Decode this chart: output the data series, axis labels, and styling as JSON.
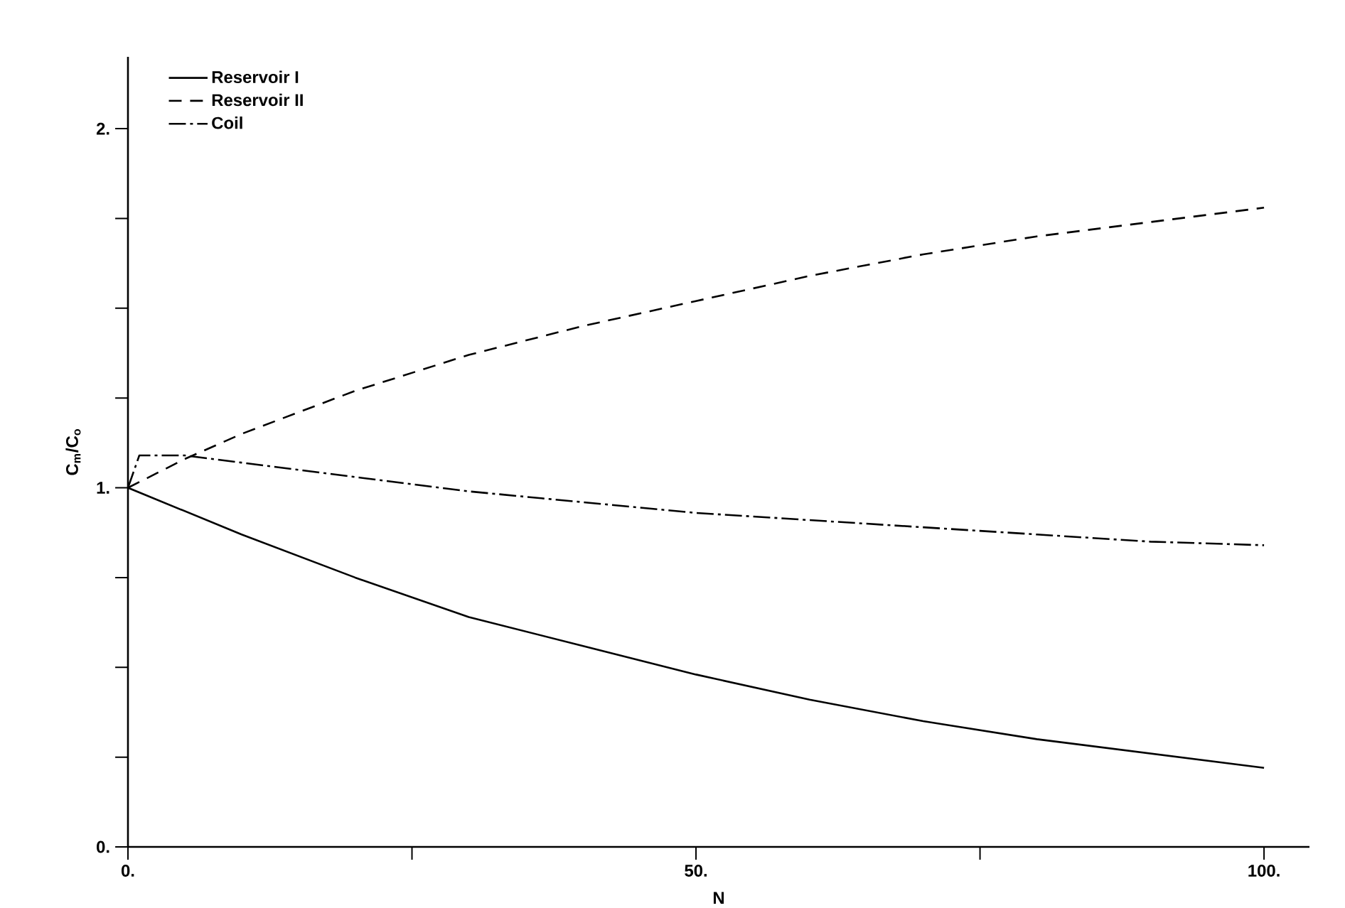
{
  "chart_data": {
    "type": "line",
    "xlabel": "N",
    "ylabel": "C$_{m}$/C$_{o}$",
    "xlim": [
      0,
      104
    ],
    "ylim": [
      0,
      2.2
    ],
    "xticks": [
      {
        "value": 0,
        "label": "0."
      },
      {
        "value": 25,
        "label": null
      },
      {
        "value": 50,
        "label": "50."
      },
      {
        "value": 75,
        "label": null
      },
      {
        "value": 100,
        "label": "100."
      }
    ],
    "yticks": [
      {
        "value": 0,
        "label": "0."
      },
      {
        "value": 0.25,
        "label": null
      },
      {
        "value": 0.5,
        "label": null
      },
      {
        "value": 0.75,
        "label": null
      },
      {
        "value": 1,
        "label": "1."
      },
      {
        "value": 1.25,
        "label": null
      },
      {
        "value": 1.5,
        "label": null
      },
      {
        "value": 1.75,
        "label": null
      },
      {
        "value": 2,
        "label": "2."
      }
    ],
    "grid": false,
    "legend": "top left",
    "marker": "none",
    "series": [
      {
        "name": "Reservoir I",
        "color": "#000000",
        "line_style": "solid",
        "x": [
          0,
          10,
          20,
          30,
          40,
          50,
          60,
          70,
          80,
          90,
          100
        ],
        "values": [
          1,
          0.87,
          0.75,
          0.64,
          0.56,
          0.48,
          0.41,
          0.35,
          0.3,
          0.26,
          0.22
        ]
      },
      {
        "name": "Reservoir II",
        "color": "#000000",
        "line_style": "dashed",
        "x": [
          0,
          5,
          10,
          20,
          30,
          40,
          50,
          60,
          70,
          80,
          90,
          100
        ],
        "values": [
          1,
          1.08,
          1.15,
          1.27,
          1.37,
          1.45,
          1.52,
          1.59,
          1.65,
          1.7,
          1.74,
          1.78
        ]
      },
      {
        "name": "Coil",
        "color": "#000000",
        "line_style": "dashdot",
        "x": [
          0,
          1,
          5,
          10,
          20,
          30,
          40,
          50,
          60,
          70,
          80,
          90,
          100
        ],
        "values": [
          1,
          1.09,
          1.09,
          1.07,
          1.03,
          0.99,
          0.96,
          0.93,
          0.91,
          0.89,
          0.87,
          0.85,
          0.84
        ]
      }
    ]
  }
}
